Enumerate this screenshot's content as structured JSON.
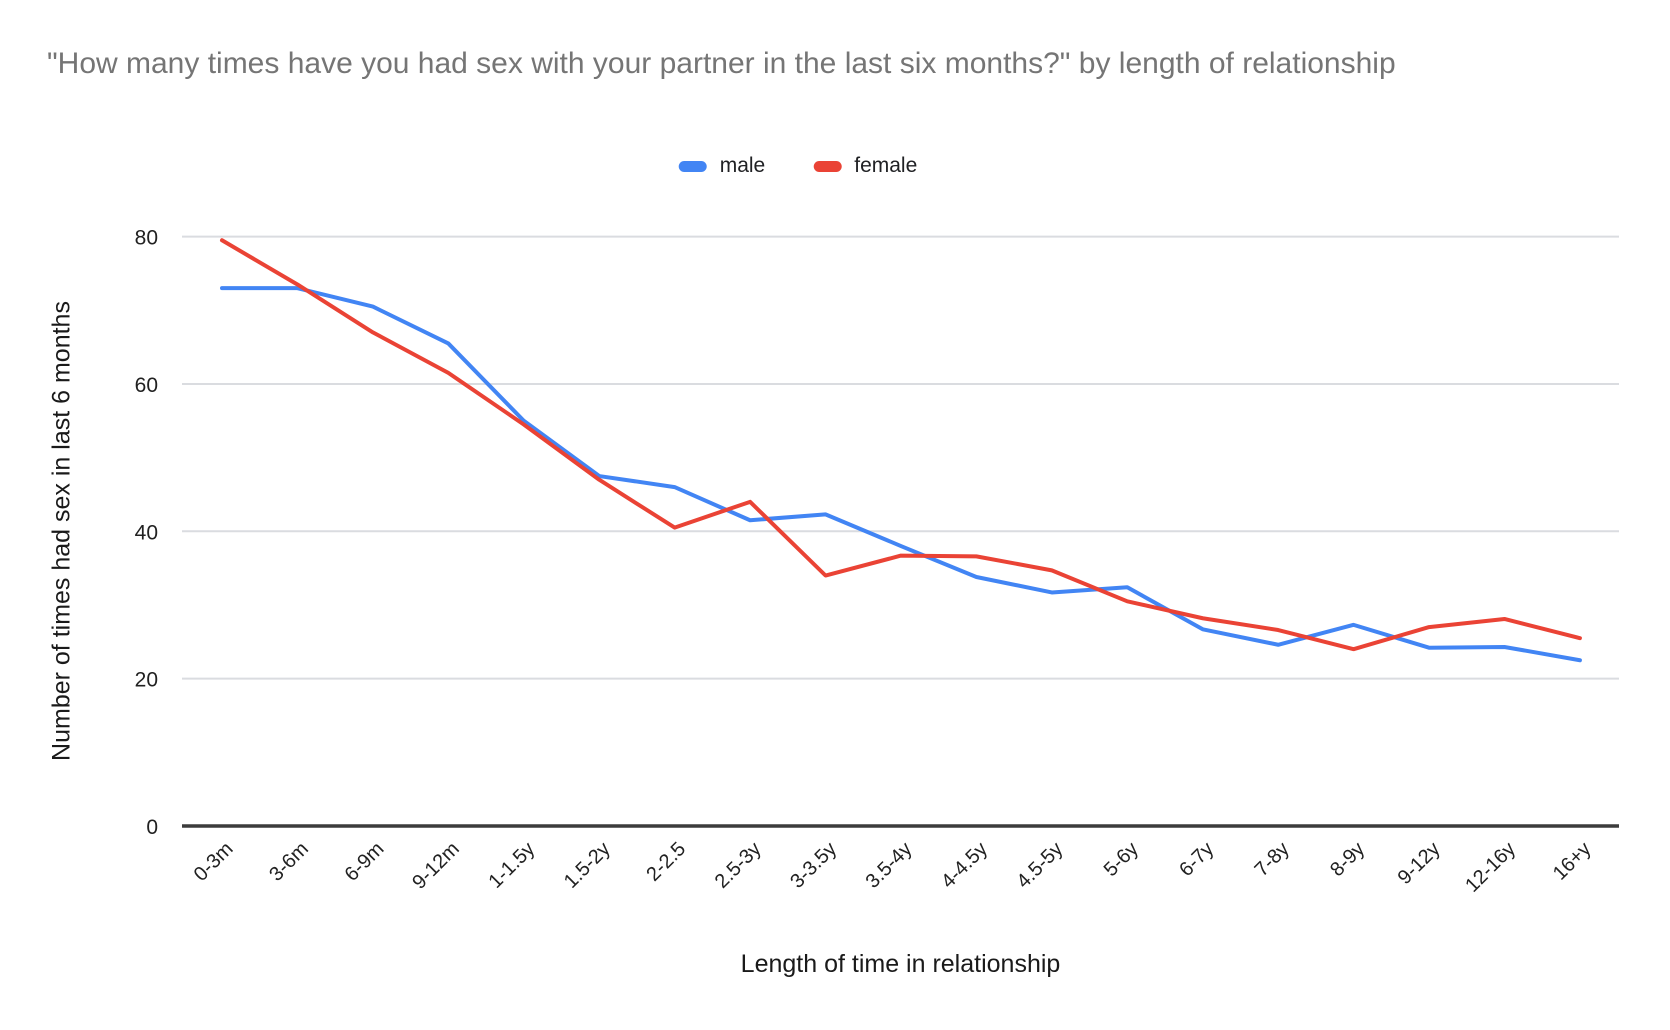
{
  "title": "\"How many times have you had sex with your partner in the last six months?\" by length of relationship",
  "chart_data": {
    "type": "line",
    "title": "\"How many times have you had sex with your partner in the last six months?\" by length of relationship",
    "categories": [
      "0-3m",
      "3-6m",
      "6-9m",
      "9-12m",
      "1-1.5y",
      "1.5-2y",
      "2-2.5",
      "2.5-3y",
      "3-3.5y",
      "3.5-4y",
      "4-4.5y",
      "4.5-5y",
      "5-6y",
      "6-7y",
      "7-8y",
      "8-9y",
      "9-12y",
      "12-16y",
      "16+y"
    ],
    "series": [
      {
        "name": "male",
        "color": "#4285f4",
        "values": [
          73,
          73,
          70.5,
          65.5,
          55,
          47.5,
          46,
          41.5,
          42.3,
          38,
          33.8,
          31.7,
          32.4,
          26.7,
          24.6,
          27.3,
          24.2,
          24.3,
          22.5
        ]
      },
      {
        "name": "female",
        "color": "#ea4335",
        "values": [
          79.5,
          73.5,
          67,
          61.5,
          54.5,
          47,
          40.5,
          44,
          34,
          36.7,
          36.6,
          34.7,
          30.5,
          28.2,
          26.6,
          24,
          27,
          28.1,
          25.5
        ]
      }
    ],
    "xlabel": "Length of time in relationship",
    "ylabel": "Number of times had sex in last 6 months",
    "yticks": [
      0,
      20,
      40,
      60,
      80
    ],
    "ylim": [
      0,
      80
    ],
    "grid": true,
    "legend_position": "top",
    "gridline_color": "#dadce0",
    "axis_line_color": "#3c3c3c",
    "tick_label_color": "#212121",
    "title_color": "#757575"
  }
}
